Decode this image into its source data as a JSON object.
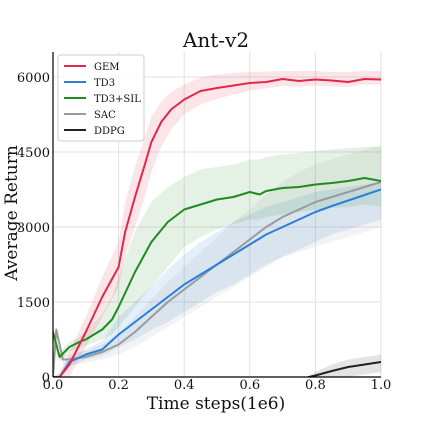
{
  "chart_data": {
    "type": "line",
    "title": "Ant-v2",
    "xlabel": "Time steps(1e6)",
    "ylabel": "Average Return",
    "xlim": [
      0.0,
      1.0
    ],
    "ylim": [
      0,
      6500
    ],
    "xticks": [
      "0.0",
      "0.2",
      "0.4",
      "0.6",
      "0.8",
      "1.0"
    ],
    "yticks": [
      "0",
      "1500",
      "3000",
      "4500",
      "6000"
    ],
    "grid": true,
    "legend_position": "top-left",
    "colors": {
      "GEM": "#e3264a",
      "TD3": "#2a7fd8",
      "TD3+SIL": "#1e8c1e",
      "SAC": "#9a9a9a",
      "DDPG": "#222222"
    },
    "series": [
      {
        "name": "GEM",
        "x": [
          0.0,
          0.02,
          0.05,
          0.1,
          0.15,
          0.2,
          0.22,
          0.25,
          0.28,
          0.3,
          0.33,
          0.36,
          0.4,
          0.45,
          0.5,
          0.55,
          0.6,
          0.65,
          0.7,
          0.75,
          0.8,
          0.85,
          0.9,
          0.95,
          1.0
        ],
        "y": [
          0,
          0,
          250,
          900,
          1600,
          2200,
          2900,
          3600,
          4250,
          4700,
          5100,
          5350,
          5550,
          5720,
          5780,
          5830,
          5880,
          5900,
          5960,
          5920,
          5950,
          5930,
          5900,
          5960,
          5950
        ],
        "band": [
          [
            0,
            0
          ],
          [
            0,
            50
          ],
          [
            0,
            500
          ],
          [
            600,
            1200
          ],
          [
            1200,
            2000
          ],
          [
            1800,
            2700
          ],
          [
            2400,
            3500
          ],
          [
            3000,
            4200
          ],
          [
            3600,
            4800
          ],
          [
            4100,
            5200
          ],
          [
            4600,
            5500
          ],
          [
            4950,
            5700
          ],
          [
            5250,
            5850
          ],
          [
            5450,
            5990
          ],
          [
            5560,
            6050
          ],
          [
            5650,
            6080
          ],
          [
            5730,
            6100
          ],
          [
            5770,
            6110
          ],
          [
            5820,
            6120
          ],
          [
            5810,
            6120
          ],
          [
            5830,
            6120
          ],
          [
            5810,
            6100
          ],
          [
            5800,
            6100
          ],
          [
            5850,
            6120
          ],
          [
            5850,
            6120
          ]
        ]
      },
      {
        "name": "TD3",
        "x": [
          0.0,
          0.02,
          0.05,
          0.1,
          0.15,
          0.2,
          0.25,
          0.3,
          0.35,
          0.4,
          0.45,
          0.5,
          0.55,
          0.6,
          0.65,
          0.7,
          0.75,
          0.8,
          0.85,
          0.9,
          0.95,
          1.0
        ],
        "y": [
          0,
          0,
          300,
          450,
          550,
          850,
          1100,
          1350,
          1600,
          1850,
          2050,
          2250,
          2450,
          2650,
          2850,
          3000,
          3150,
          3300,
          3420,
          3530,
          3640,
          3750
        ],
        "band": [
          [
            0,
            0
          ],
          [
            0,
            100
          ],
          [
            200,
            400
          ],
          [
            350,
            560
          ],
          [
            420,
            720
          ],
          [
            600,
            1200
          ],
          [
            750,
            1500
          ],
          [
            950,
            1800
          ],
          [
            1100,
            2150
          ],
          [
            1300,
            2450
          ],
          [
            1500,
            2700
          ],
          [
            1700,
            2900
          ],
          [
            1850,
            3100
          ],
          [
            2050,
            3250
          ],
          [
            2250,
            3400
          ],
          [
            2400,
            3500
          ],
          [
            2550,
            3600
          ],
          [
            2700,
            3700
          ],
          [
            2850,
            3750
          ],
          [
            2950,
            3800
          ],
          [
            3050,
            3850
          ],
          [
            3150,
            3900
          ]
        ]
      },
      {
        "name": "TD3+SIL",
        "x": [
          0.0,
          0.02,
          0.05,
          0.08,
          0.1,
          0.15,
          0.18,
          0.2,
          0.25,
          0.3,
          0.35,
          0.4,
          0.45,
          0.5,
          0.55,
          0.6,
          0.63,
          0.65,
          0.7,
          0.75,
          0.8,
          0.85,
          0.9,
          0.95,
          1.0
        ],
        "y": [
          900,
          400,
          600,
          700,
          750,
          950,
          1150,
          1400,
          2100,
          2700,
          3100,
          3350,
          3450,
          3550,
          3600,
          3700,
          3650,
          3720,
          3780,
          3800,
          3850,
          3880,
          3920,
          3980,
          3920
        ],
        "band": [
          [
            700,
            1000
          ],
          [
            300,
            500
          ],
          [
            500,
            700
          ],
          [
            580,
            800
          ],
          [
            620,
            900
          ],
          [
            750,
            1250
          ],
          [
            850,
            1600
          ],
          [
            1000,
            2000
          ],
          [
            1400,
            2900
          ],
          [
            1800,
            3500
          ],
          [
            2200,
            3800
          ],
          [
            2600,
            4000
          ],
          [
            2800,
            4150
          ],
          [
            2950,
            4200
          ],
          [
            3050,
            4250
          ],
          [
            3150,
            4350
          ],
          [
            3150,
            4350
          ],
          [
            3200,
            4400
          ],
          [
            3250,
            4450
          ],
          [
            3300,
            4480
          ],
          [
            3350,
            4520
          ],
          [
            3380,
            4550
          ],
          [
            3400,
            4580
          ],
          [
            3450,
            4600
          ],
          [
            3400,
            4600
          ]
        ]
      },
      {
        "name": "SAC",
        "x": [
          0.0,
          0.01,
          0.03,
          0.05,
          0.1,
          0.15,
          0.2,
          0.25,
          0.3,
          0.35,
          0.4,
          0.45,
          0.5,
          0.55,
          0.6,
          0.65,
          0.7,
          0.75,
          0.8,
          0.85,
          0.9,
          0.95,
          1.0
        ],
        "y": [
          0,
          950,
          350,
          350,
          400,
          500,
          650,
          900,
          1200,
          1500,
          1750,
          2000,
          2250,
          2500,
          2750,
          3000,
          3200,
          3350,
          3500,
          3600,
          3700,
          3800,
          3900
        ],
        "band": [
          [
            0,
            0
          ],
          [
            800,
            1050
          ],
          [
            250,
            450
          ],
          [
            250,
            450
          ],
          [
            280,
            520
          ],
          [
            350,
            650
          ],
          [
            450,
            850
          ],
          [
            600,
            1200
          ],
          [
            800,
            1550
          ],
          [
            1000,
            1900
          ],
          [
            1200,
            2200
          ],
          [
            1400,
            2500
          ],
          [
            1600,
            2800
          ],
          [
            1800,
            3100
          ],
          [
            2000,
            3350
          ],
          [
            2200,
            3650
          ],
          [
            2400,
            3900
          ],
          [
            2500,
            4100
          ],
          [
            2600,
            4250
          ],
          [
            2700,
            4350
          ],
          [
            2800,
            4450
          ],
          [
            2900,
            4550
          ],
          [
            3000,
            4650
          ]
        ]
      },
      {
        "name": "DDPG",
        "x": [
          0.78,
          0.8,
          0.85,
          0.9,
          0.95,
          1.0
        ],
        "y": [
          0,
          30,
          120,
          200,
          250,
          300
        ],
        "band": [
          [
            0,
            0
          ],
          [
            0,
            100
          ],
          [
            0,
            250
          ],
          [
            0,
            350
          ],
          [
            50,
            400
          ],
          [
            100,
            450
          ]
        ]
      }
    ]
  }
}
